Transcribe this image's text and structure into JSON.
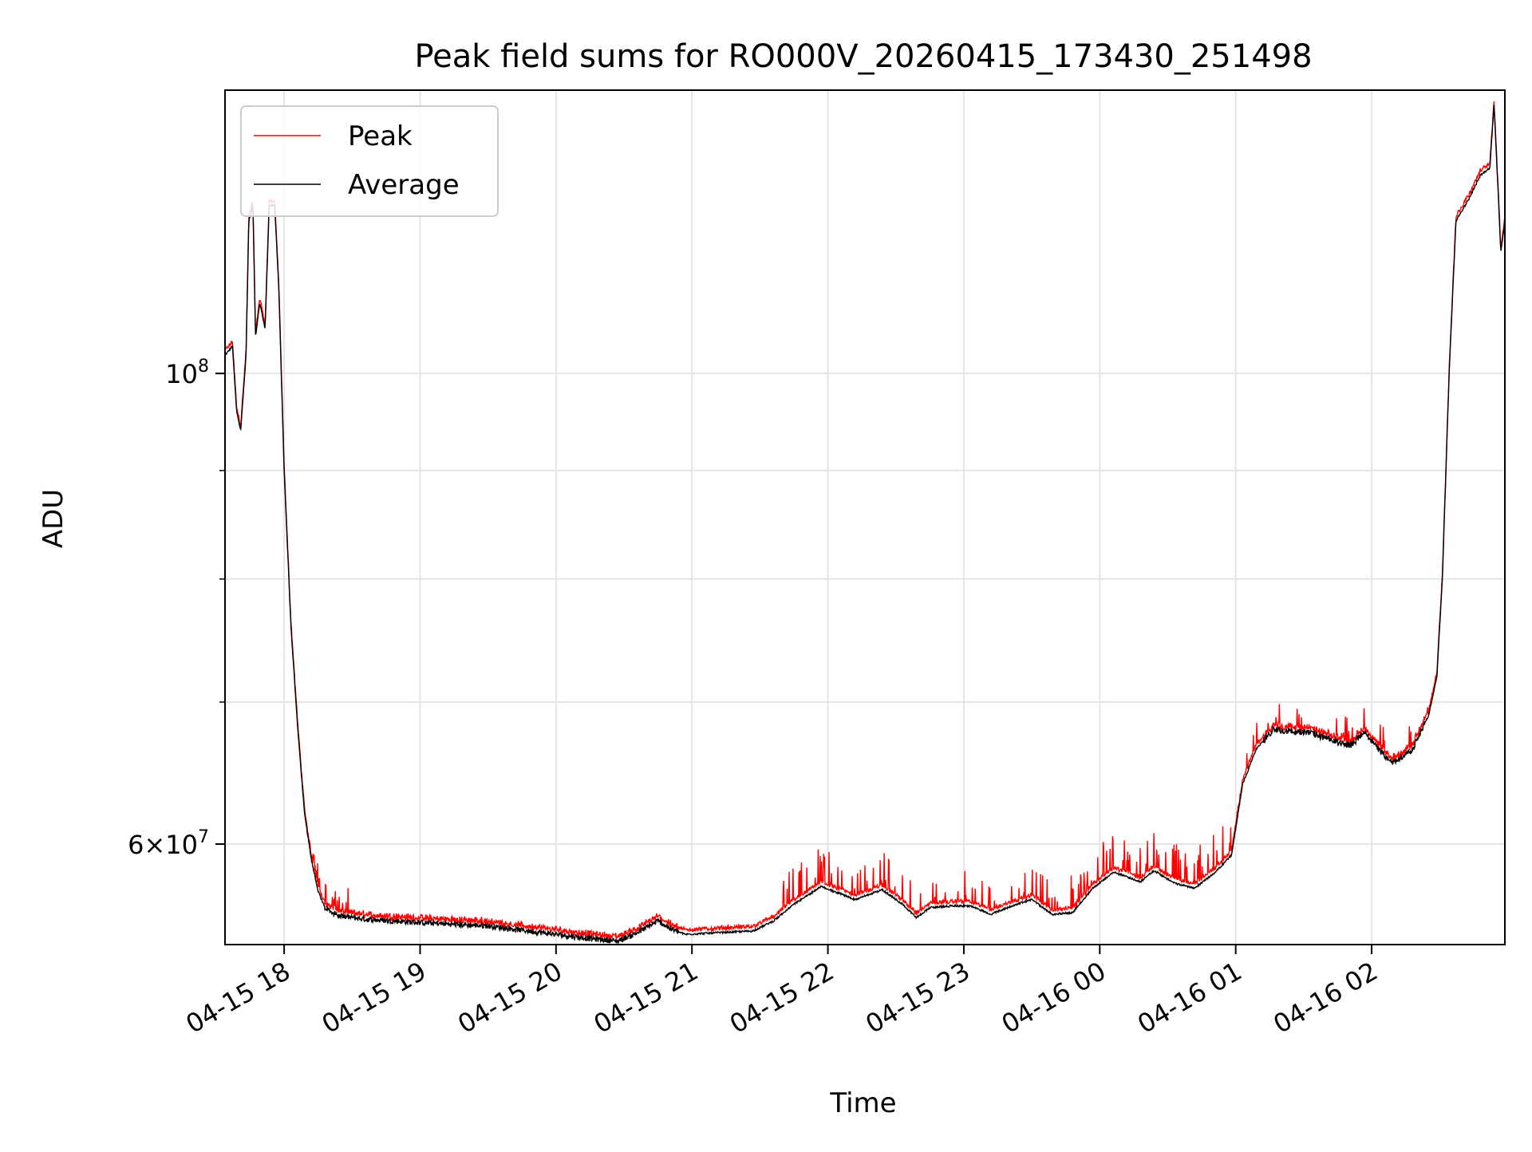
{
  "chart_data": {
    "type": "line",
    "title": "Peak field sums for RO000V_20260415_173430_251498",
    "xlabel": "Time",
    "ylabel": "ADU",
    "y_scale": "log",
    "ylim": [
      53800000,
      136000000
    ],
    "xlim_hours": [
      17.565,
      26.98
    ],
    "grid": true,
    "legend_location": "upper left",
    "x_ticks": [
      {
        "value": 18,
        "label": "04-15 18"
      },
      {
        "value": 19,
        "label": "04-15 19"
      },
      {
        "value": 20,
        "label": "04-15 20"
      },
      {
        "value": 21,
        "label": "04-15 21"
      },
      {
        "value": 22,
        "label": "04-15 22"
      },
      {
        "value": 23,
        "label": "04-15 23"
      },
      {
        "value": 24,
        "label": "04-16 00"
      },
      {
        "value": 25,
        "label": "04-16 01"
      },
      {
        "value": 26,
        "label": "04-16 02"
      }
    ],
    "y_major_ticks": [
      {
        "value": 100000000,
        "mantissa": "",
        "exponent": "8"
      },
      {
        "value": 60000000,
        "mantissa": "6",
        "exponent": "7"
      }
    ],
    "y_minor_ticks": [
      70000000,
      80000000,
      90000000
    ],
    "series": [
      {
        "name": "Peak",
        "color": "#ff0000",
        "role": "peak"
      },
      {
        "name": "Average",
        "color": "#000000",
        "role": "average"
      }
    ],
    "average_anchors": [
      [
        17.565,
        102000000
      ],
      [
        17.62,
        103000000
      ],
      [
        17.65,
        96000000
      ],
      [
        17.68,
        94000000
      ],
      [
        17.72,
        102000000
      ],
      [
        17.74,
        118000000
      ],
      [
        17.77,
        120000000
      ],
      [
        17.79,
        104000000
      ],
      [
        17.82,
        108000000
      ],
      [
        17.86,
        105000000
      ],
      [
        17.89,
        120000000
      ],
      [
        17.93,
        120000000
      ],
      [
        17.96,
        110000000
      ],
      [
        18.0,
        90000000
      ],
      [
        18.05,
        76000000
      ],
      [
        18.1,
        68000000
      ],
      [
        18.15,
        62000000
      ],
      [
        18.2,
        59000000
      ],
      [
        18.25,
        57000000
      ],
      [
        18.3,
        56000000
      ],
      [
        18.4,
        55500000
      ],
      [
        18.6,
        55300000
      ],
      [
        19.0,
        55100000
      ],
      [
        19.5,
        54900000
      ],
      [
        19.9,
        54500000
      ],
      [
        20.2,
        54200000
      ],
      [
        20.45,
        54000000
      ],
      [
        20.6,
        54500000
      ],
      [
        20.75,
        55200000
      ],
      [
        20.85,
        54700000
      ],
      [
        20.95,
        54400000
      ],
      [
        21.2,
        54500000
      ],
      [
        21.45,
        54600000
      ],
      [
        21.6,
        55200000
      ],
      [
        21.75,
        56200000
      ],
      [
        21.95,
        57300000
      ],
      [
        22.2,
        56500000
      ],
      [
        22.4,
        57100000
      ],
      [
        22.55,
        56200000
      ],
      [
        22.65,
        55400000
      ],
      [
        22.75,
        56000000
      ],
      [
        22.9,
        56100000
      ],
      [
        23.05,
        56100000
      ],
      [
        23.2,
        55600000
      ],
      [
        23.35,
        56100000
      ],
      [
        23.5,
        56500000
      ],
      [
        23.65,
        55600000
      ],
      [
        23.8,
        55700000
      ],
      [
        23.95,
        57200000
      ],
      [
        24.1,
        58200000
      ],
      [
        24.3,
        57600000
      ],
      [
        24.4,
        58300000
      ],
      [
        24.55,
        57500000
      ],
      [
        24.7,
        57200000
      ],
      [
        24.85,
        58200000
      ],
      [
        24.97,
        59300000
      ],
      [
        25.05,
        64000000
      ],
      [
        25.15,
        66500000
      ],
      [
        25.28,
        68000000
      ],
      [
        25.4,
        67800000
      ],
      [
        25.55,
        67700000
      ],
      [
        25.75,
        67000000
      ],
      [
        25.85,
        66800000
      ],
      [
        25.95,
        67800000
      ],
      [
        26.05,
        66500000
      ],
      [
        26.15,
        65500000
      ],
      [
        26.3,
        66500000
      ],
      [
        26.42,
        69000000
      ],
      [
        26.48,
        72000000
      ],
      [
        26.52,
        80000000
      ],
      [
        26.57,
        100000000
      ],
      [
        26.62,
        118000000
      ],
      [
        26.72,
        121000000
      ],
      [
        26.8,
        124000000
      ],
      [
        26.87,
        125000000
      ],
      [
        26.9,
        134000000
      ],
      [
        26.93,
        122000000
      ],
      [
        26.95,
        114000000
      ],
      [
        26.98,
        118000000
      ]
    ]
  }
}
